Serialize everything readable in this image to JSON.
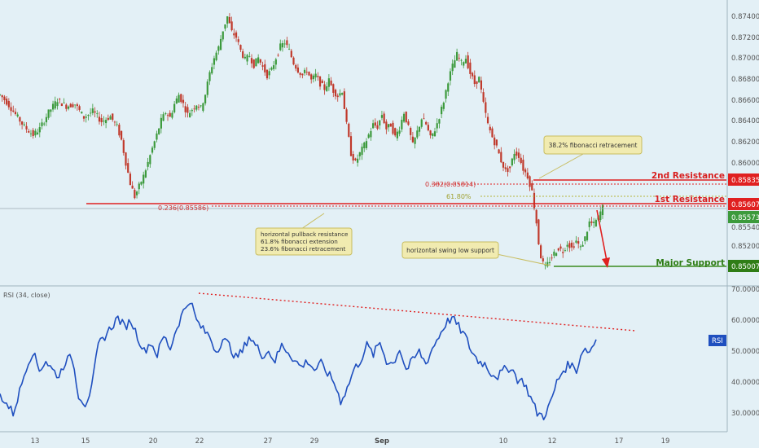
{
  "colors": {
    "background": "#e3f0f6",
    "up": "#3c9a3c",
    "down": "#c0392b",
    "rsi_line": "#1f4fbf",
    "resistance": "#e02020",
    "support": "#3a8a1e",
    "fib_level": "#b5b53a",
    "callout_fill": "#f1ebb0",
    "callout_stroke": "#c8bd60",
    "rsi_badge": "#1f4fbf",
    "support_badge": "#2f7d16",
    "resistance_badge": "#e02020",
    "current_badge": "#3c9a3c"
  },
  "price_axis": {
    "ticks": [
      "0.87400",
      "0.87200",
      "0.87000",
      "0.86800",
      "0.86600",
      "0.86400",
      "0.86200",
      "0.86000",
      "0.85800",
      "0.85540",
      "0.85200",
      "0.85000"
    ],
    "badges": [
      {
        "name": "resistance-2",
        "value": "0.85835",
        "color": "resistance"
      },
      {
        "name": "resistance-1",
        "value": "0.85607",
        "color": "resistance"
      },
      {
        "name": "current-price",
        "value": "0.85573",
        "color": "current"
      },
      {
        "name": "support",
        "value": "0.85007",
        "color": "support"
      }
    ]
  },
  "rsi_axis": {
    "ticks": [
      "70.0000",
      "60.0000",
      "50.0000",
      "40.0000",
      "30.0000"
    ],
    "badge": "RSI"
  },
  "time_axis": {
    "labels": [
      "13",
      "15",
      "20",
      "22",
      "27",
      "29",
      "Sep",
      "10",
      "12",
      "17",
      "19"
    ]
  },
  "annotations": {
    "fib_382": "0.382(0.85814)",
    "fib_236": "0.236(0.85586)",
    "fib_618": "61.80%",
    "resistance_2_label": "2nd Resistance",
    "resistance_1_label": "1st Resistance",
    "support_label": "Major Support",
    "callout_fib": "38.2% fibonacci retracement",
    "callout_pullback": [
      "horizontal pullback resistance",
      "61.8% fibonacci extension",
      "23.6% fibonacci retracement"
    ],
    "callout_swing": "horizontal swing low support"
  },
  "chart_data": [
    {
      "type": "candlestick",
      "title": "",
      "y_axis_side": "right",
      "ylim": [
        0.8492,
        0.8758
      ],
      "x_ticks": [
        "13",
        "15",
        "20",
        "22",
        "27",
        "29",
        "Sep",
        "10",
        "12",
        "17",
        "19"
      ],
      "close_path": [
        {
          "x": 0,
          "y": 0.8669
        },
        {
          "x": 3,
          "y": 0.8662
        },
        {
          "x": 7,
          "y": 0.865
        },
        {
          "x": 11,
          "y": 0.8638
        },
        {
          "x": 15,
          "y": 0.863
        },
        {
          "x": 18,
          "y": 0.8636
        },
        {
          "x": 22,
          "y": 0.8652
        },
        {
          "x": 26,
          "y": 0.8664
        },
        {
          "x": 30,
          "y": 0.8658
        },
        {
          "x": 34,
          "y": 0.866
        },
        {
          "x": 38,
          "y": 0.8647
        },
        {
          "x": 42,
          "y": 0.8653
        },
        {
          "x": 46,
          "y": 0.8643
        },
        {
          "x": 50,
          "y": 0.8648
        },
        {
          "x": 53,
          "y": 0.8638
        },
        {
          "x": 55,
          "y": 0.8625
        },
        {
          "x": 57,
          "y": 0.8603
        },
        {
          "x": 59,
          "y": 0.8583
        },
        {
          "x": 61,
          "y": 0.857
        },
        {
          "x": 63,
          "y": 0.858
        },
        {
          "x": 65,
          "y": 0.859
        },
        {
          "x": 67,
          "y": 0.8603
        },
        {
          "x": 69,
          "y": 0.8617
        },
        {
          "x": 71,
          "y": 0.863
        },
        {
          "x": 73,
          "y": 0.8644
        },
        {
          "x": 75,
          "y": 0.8652
        },
        {
          "x": 77,
          "y": 0.8647
        },
        {
          "x": 79,
          "y": 0.866
        },
        {
          "x": 81,
          "y": 0.8669
        },
        {
          "x": 83,
          "y": 0.866
        },
        {
          "x": 85,
          "y": 0.865
        },
        {
          "x": 87,
          "y": 0.8655
        },
        {
          "x": 89,
          "y": 0.866
        },
        {
          "x": 91,
          "y": 0.8656
        },
        {
          "x": 93,
          "y": 0.867
        },
        {
          "x": 95,
          "y": 0.869
        },
        {
          "x": 97,
          "y": 0.8705
        },
        {
          "x": 99,
          "y": 0.8715
        },
        {
          "x": 101,
          "y": 0.8732
        },
        {
          "x": 103,
          "y": 0.8745
        },
        {
          "x": 105,
          "y": 0.873
        },
        {
          "x": 107,
          "y": 0.8725
        },
        {
          "x": 109,
          "y": 0.8712
        },
        {
          "x": 111,
          "y": 0.8703
        },
        {
          "x": 113,
          "y": 0.8707
        },
        {
          "x": 115,
          "y": 0.8698
        },
        {
          "x": 117,
          "y": 0.8705
        },
        {
          "x": 119,
          "y": 0.8696
        },
        {
          "x": 121,
          "y": 0.8688
        },
        {
          "x": 123,
          "y": 0.8693
        },
        {
          "x": 125,
          "y": 0.8705
        },
        {
          "x": 127,
          "y": 0.8716
        },
        {
          "x": 129,
          "y": 0.872
        },
        {
          "x": 131,
          "y": 0.8712
        },
        {
          "x": 133,
          "y": 0.87
        },
        {
          "x": 135,
          "y": 0.8693
        },
        {
          "x": 137,
          "y": 0.8688
        },
        {
          "x": 139,
          "y": 0.8693
        },
        {
          "x": 141,
          "y": 0.8683
        },
        {
          "x": 143,
          "y": 0.8688
        },
        {
          "x": 145,
          "y": 0.868
        },
        {
          "x": 147,
          "y": 0.8675
        },
        {
          "x": 149,
          "y": 0.8683
        },
        {
          "x": 151,
          "y": 0.8673
        },
        {
          "x": 153,
          "y": 0.8668
        },
        {
          "x": 155,
          "y": 0.8673
        },
        {
          "x": 157,
          "y": 0.864
        },
        {
          "x": 159,
          "y": 0.8612
        },
        {
          "x": 161,
          "y": 0.8603
        },
        {
          "x": 163,
          "y": 0.8612
        },
        {
          "x": 165,
          "y": 0.862
        },
        {
          "x": 167,
          "y": 0.863
        },
        {
          "x": 169,
          "y": 0.864
        },
        {
          "x": 171,
          "y": 0.8638
        },
        {
          "x": 173,
          "y": 0.865
        },
        {
          "x": 175,
          "y": 0.8636
        },
        {
          "x": 177,
          "y": 0.864
        },
        {
          "x": 179,
          "y": 0.8628
        },
        {
          "x": 181,
          "y": 0.8637
        },
        {
          "x": 183,
          "y": 0.8652
        },
        {
          "x": 185,
          "y": 0.8637
        },
        {
          "x": 187,
          "y": 0.862
        },
        {
          "x": 189,
          "y": 0.8633
        },
        {
          "x": 191,
          "y": 0.8646
        },
        {
          "x": 193,
          "y": 0.864
        },
        {
          "x": 195,
          "y": 0.8627
        },
        {
          "x": 197,
          "y": 0.8635
        },
        {
          "x": 199,
          "y": 0.8648
        },
        {
          "x": 201,
          "y": 0.8663
        },
        {
          "x": 203,
          "y": 0.8683
        },
        {
          "x": 205,
          "y": 0.8697
        },
        {
          "x": 207,
          "y": 0.8708
        },
        {
          "x": 209,
          "y": 0.87
        },
        {
          "x": 211,
          "y": 0.8705
        },
        {
          "x": 213,
          "y": 0.869
        },
        {
          "x": 215,
          "y": 0.868
        },
        {
          "x": 217,
          "y": 0.8685
        },
        {
          "x": 219,
          "y": 0.866
        },
        {
          "x": 221,
          "y": 0.864
        },
        {
          "x": 223,
          "y": 0.8628
        },
        {
          "x": 225,
          "y": 0.8618
        },
        {
          "x": 227,
          "y": 0.8605
        },
        {
          "x": 229,
          "y": 0.8595
        },
        {
          "x": 231,
          "y": 0.8598
        },
        {
          "x": 233,
          "y": 0.8613
        },
        {
          "x": 235,
          "y": 0.861
        },
        {
          "x": 237,
          "y": 0.8597
        },
        {
          "x": 239,
          "y": 0.859
        },
        {
          "x": 241,
          "y": 0.8575
        },
        {
          "x": 242,
          "y": 0.856
        },
        {
          "x": 243,
          "y": 0.8545
        },
        {
          "x": 244,
          "y": 0.8525
        },
        {
          "x": 245,
          "y": 0.8512
        },
        {
          "x": 246,
          "y": 0.8505
        },
        {
          "x": 247,
          "y": 0.8501
        },
        {
          "x": 249,
          "y": 0.8508
        },
        {
          "x": 251,
          "y": 0.8515
        },
        {
          "x": 253,
          "y": 0.852
        },
        {
          "x": 255,
          "y": 0.8517
        },
        {
          "x": 257,
          "y": 0.8525
        },
        {
          "x": 259,
          "y": 0.852
        },
        {
          "x": 261,
          "y": 0.8527
        },
        {
          "x": 263,
          "y": 0.852
        },
        {
          "x": 265,
          "y": 0.853
        },
        {
          "x": 267,
          "y": 0.8545
        },
        {
          "x": 269,
          "y": 0.8543
        },
        {
          "x": 271,
          "y": 0.855
        },
        {
          "x": 273,
          "y": 0.856
        }
      ]
    },
    {
      "type": "line",
      "title": "RSI (34, close)",
      "ylim": [
        25,
        70
      ],
      "series": [
        {
          "points": [
            {
              "x": 0,
              "y": 36
            },
            {
              "x": 3,
              "y": 33
            },
            {
              "x": 6,
              "y": 30
            },
            {
              "x": 9,
              "y": 37
            },
            {
              "x": 12,
              "y": 45
            },
            {
              "x": 15,
              "y": 50
            },
            {
              "x": 18,
              "y": 44
            },
            {
              "x": 21,
              "y": 47
            },
            {
              "x": 24,
              "y": 44
            },
            {
              "x": 27,
              "y": 42
            },
            {
              "x": 30,
              "y": 47
            },
            {
              "x": 33,
              "y": 48
            },
            {
              "x": 36,
              "y": 36
            },
            {
              "x": 39,
              "y": 33
            },
            {
              "x": 42,
              "y": 38
            },
            {
              "x": 45,
              "y": 52
            },
            {
              "x": 48,
              "y": 55
            },
            {
              "x": 51,
              "y": 58
            },
            {
              "x": 54,
              "y": 61
            },
            {
              "x": 57,
              "y": 58
            },
            {
              "x": 60,
              "y": 60
            },
            {
              "x": 63,
              "y": 55
            },
            {
              "x": 66,
              "y": 50
            },
            {
              "x": 69,
              "y": 53
            },
            {
              "x": 72,
              "y": 49
            },
            {
              "x": 75,
              "y": 55
            },
            {
              "x": 78,
              "y": 51
            },
            {
              "x": 81,
              "y": 58
            },
            {
              "x": 84,
              "y": 63
            },
            {
              "x": 87,
              "y": 67
            },
            {
              "x": 90,
              "y": 60
            },
            {
              "x": 93,
              "y": 57
            },
            {
              "x": 96,
              "y": 55
            },
            {
              "x": 99,
              "y": 50
            },
            {
              "x": 102,
              "y": 54
            },
            {
              "x": 105,
              "y": 52
            },
            {
              "x": 108,
              "y": 48
            },
            {
              "x": 111,
              "y": 50
            },
            {
              "x": 114,
              "y": 55
            },
            {
              "x": 117,
              "y": 52
            },
            {
              "x": 120,
              "y": 49
            },
            {
              "x": 123,
              "y": 50
            },
            {
              "x": 126,
              "y": 47
            },
            {
              "x": 129,
              "y": 52
            },
            {
              "x": 132,
              "y": 50
            },
            {
              "x": 135,
              "y": 47
            },
            {
              "x": 138,
              "y": 45
            },
            {
              "x": 141,
              "y": 47
            },
            {
              "x": 144,
              "y": 44
            },
            {
              "x": 147,
              "y": 46
            },
            {
              "x": 150,
              "y": 43
            },
            {
              "x": 153,
              "y": 40
            },
            {
              "x": 156,
              "y": 34
            },
            {
              "x": 159,
              "y": 38
            },
            {
              "x": 162,
              "y": 44
            },
            {
              "x": 165,
              "y": 47
            },
            {
              "x": 168,
              "y": 52
            },
            {
              "x": 171,
              "y": 49
            },
            {
              "x": 174,
              "y": 53
            },
            {
              "x": 177,
              "y": 47
            },
            {
              "x": 180,
              "y": 46
            },
            {
              "x": 183,
              "y": 51
            },
            {
              "x": 186,
              "y": 44
            },
            {
              "x": 189,
              "y": 47
            },
            {
              "x": 192,
              "y": 50
            },
            {
              "x": 195,
              "y": 46
            },
            {
              "x": 198,
              "y": 51
            },
            {
              "x": 201,
              "y": 55
            },
            {
              "x": 204,
              "y": 59
            },
            {
              "x": 207,
              "y": 61
            },
            {
              "x": 210,
              "y": 58
            },
            {
              "x": 213,
              "y": 55
            },
            {
              "x": 216,
              "y": 50
            },
            {
              "x": 219,
              "y": 47
            },
            {
              "x": 222,
              "y": 46
            },
            {
              "x": 225,
              "y": 43
            },
            {
              "x": 228,
              "y": 42
            },
            {
              "x": 231,
              "y": 44
            },
            {
              "x": 234,
              "y": 45
            },
            {
              "x": 237,
              "y": 41
            },
            {
              "x": 240,
              "y": 40
            },
            {
              "x": 243,
              "y": 35
            },
            {
              "x": 246,
              "y": 30
            },
            {
              "x": 249,
              "y": 29
            },
            {
              "x": 252,
              "y": 33
            },
            {
              "x": 255,
              "y": 40
            },
            {
              "x": 258,
              "y": 44
            },
            {
              "x": 261,
              "y": 46
            },
            {
              "x": 264,
              "y": 44
            },
            {
              "x": 267,
              "y": 51
            },
            {
              "x": 270,
              "y": 50
            },
            {
              "x": 273,
              "y": 54
            }
          ]
        }
      ]
    }
  ]
}
